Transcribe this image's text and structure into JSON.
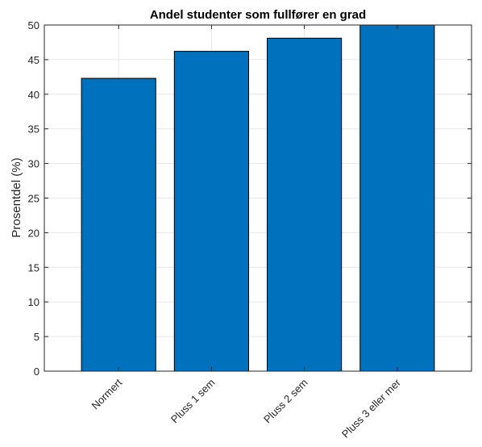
{
  "chart_data": {
    "type": "bar",
    "title": "Andel studenter som fullfører en grad",
    "xlabel": "",
    "ylabel": "Prosentdel (%)",
    "categories": [
      "Normert",
      "Pluss 1 sem",
      "Pluss 2 sem",
      "Pluss 3 eller mer"
    ],
    "values": [
      42.3,
      46.2,
      48.1,
      50.0
    ],
    "ylim": [
      0,
      50
    ],
    "yticks": [
      0,
      5,
      10,
      15,
      20,
      25,
      30,
      35,
      40,
      45,
      50
    ],
    "grid": true,
    "bar_color": "#0072BD",
    "bar_edge_color": "#000000",
    "grid_color": "#e6e6e6",
    "axis_color": "#262626"
  }
}
